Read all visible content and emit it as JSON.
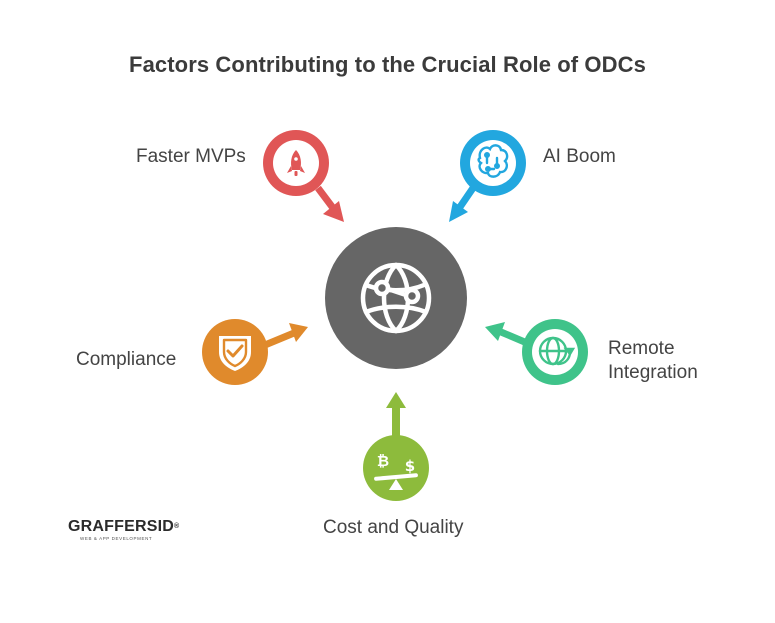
{
  "title": "Factors Contributing to the Crucial Role of ODCs",
  "center": {
    "icon": "globe-network-icon",
    "color": "#666666"
  },
  "factors": [
    {
      "label": "Faster MVPs",
      "icon": "rocket-icon",
      "color": "#e05656"
    },
    {
      "label": "AI Boom",
      "icon": "brain-circuit-icon",
      "color": "#22a7df"
    },
    {
      "label": "Remote Integration",
      "label_line1": "Remote",
      "label_line2": "Integration",
      "icon": "globe-refresh-icon",
      "color": "#3fc38a"
    },
    {
      "label": "Cost and Quality",
      "icon": "currency-balance-icon",
      "color": "#8dbb3c"
    },
    {
      "label": "Compliance",
      "icon": "shield-check-icon",
      "color": "#e08a2c"
    }
  ],
  "logo": {
    "name": "GRAFFERSID",
    "tagline": "WEB & APP DEVELOPMENT"
  }
}
